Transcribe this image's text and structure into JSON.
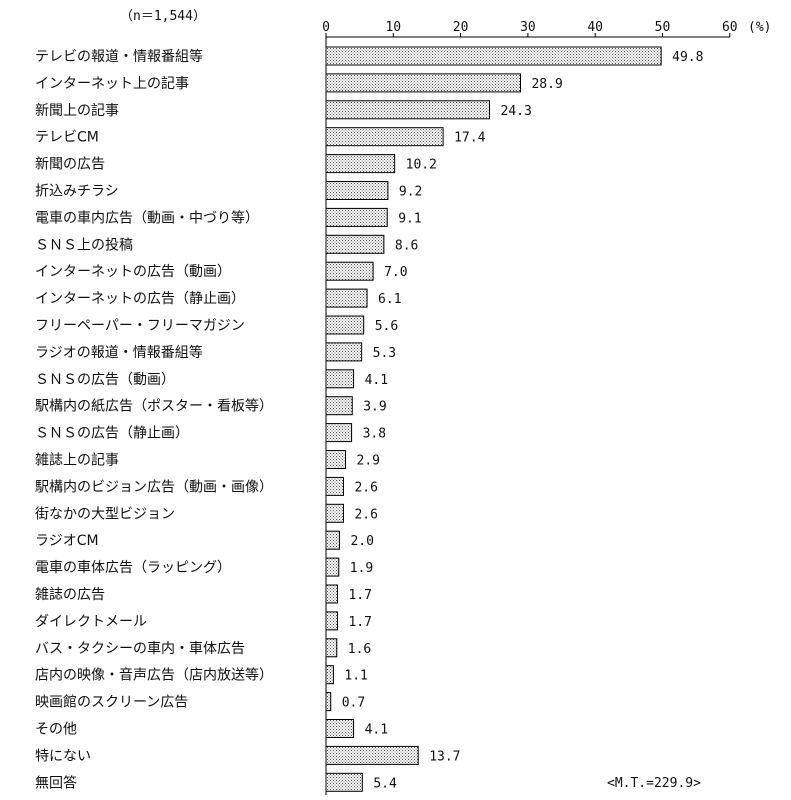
{
  "chart_data": {
    "type": "bar",
    "orientation": "horizontal",
    "sample_label": "（n＝1,544）",
    "unit_label": "(%)",
    "total_label": "<M.T.=229.9>",
    "xlim": [
      0,
      60
    ],
    "xticks": [
      0,
      10,
      20,
      30,
      40,
      50,
      60
    ],
    "value_labels": [
      "49.8",
      "28.9",
      "24.3",
      "17.4",
      "10.2",
      "9.2",
      "9.1",
      "8.6",
      "7.0",
      "6.1",
      "5.6",
      "5.3",
      "4.1",
      "3.9",
      "3.8",
      "2.9",
      "2.6",
      "2.6",
      "2.0",
      "1.9",
      "1.7",
      "1.7",
      "1.6",
      "1.1",
      "0.7",
      "4.1",
      "13.7",
      "5.4"
    ],
    "categories": [
      "テレビの報道・情報番組等",
      "インターネット上の記事",
      "新聞上の記事",
      "テレビCM",
      "新聞の広告",
      "折込みチラシ",
      "電車の車内広告（動画・中づり等）",
      "ＳＮＳ上の投稿",
      "インターネットの広告（動画）",
      "インターネットの広告（静止画）",
      "フリーペーパー・フリーマガジン",
      "ラジオの報道・情報番組等",
      "ＳＮＳの広告（動画）",
      "駅構内の紙広告（ポスター・看板等）",
      "ＳＮＳの広告（静止画）",
      "雑誌上の記事",
      "駅構内のビジョン広告（動画・画像）",
      "街なかの大型ビジョン",
      "ラジオCM",
      "電車の車体広告（ラッピング）",
      "雑誌の広告",
      "ダイレクトメール",
      "バス・タクシーの車内・車体広告",
      "店内の映像・音声広告（店内放送等）",
      "映画館のスクリーン広告",
      "その他",
      "特にない",
      "無回答"
    ],
    "values": [
      49.8,
      28.9,
      24.3,
      17.4,
      10.2,
      9.2,
      9.1,
      8.6,
      7.0,
      6.1,
      5.6,
      5.3,
      4.1,
      3.9,
      3.8,
      2.9,
      2.6,
      2.6,
      2.0,
      1.9,
      1.7,
      1.7,
      1.6,
      1.1,
      0.7,
      4.1,
      13.7,
      5.4
    ]
  }
}
